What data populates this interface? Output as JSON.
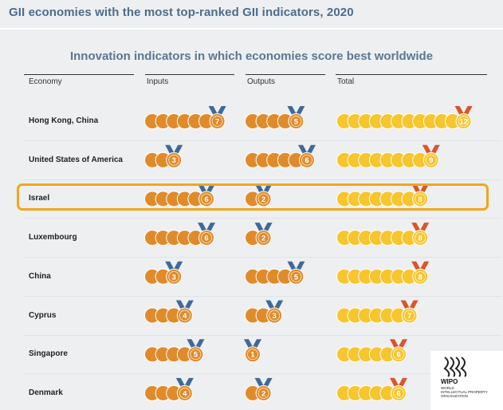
{
  "title": "GII economies with the most top-ranked GII indicators, 2020",
  "subtitle": "Innovation indicators in which economies score best worldwide",
  "colors": {
    "orange": "#e08b2b",
    "gold": "#f7c52e",
    "blue": "#40699a",
    "red": "#d9552a",
    "highlight": "#f0a71b",
    "title": "#4d6c8c"
  },
  "chart_data": {
    "type": "table",
    "title": "GII economies with the most top-ranked GII indicators, 2020",
    "subtitle": "Innovation indicators in which economies score best worldwide",
    "columns": [
      "Economy",
      "Inputs",
      "Outputs",
      "Total"
    ],
    "rows": [
      {
        "economy": "Hong Kong, China",
        "inputs": 7,
        "outputs": 5,
        "total": 12
      },
      {
        "economy": "United States of America",
        "inputs": 3,
        "outputs": 6,
        "total": 9
      },
      {
        "economy": "Israel",
        "inputs": 6,
        "outputs": 2,
        "total": 8,
        "highlighted": true
      },
      {
        "economy": "Luxembourg",
        "inputs": 6,
        "outputs": 2,
        "total": 8
      },
      {
        "economy": "China",
        "inputs": 3,
        "outputs": 5,
        "total": 8
      },
      {
        "economy": "Cyprus",
        "inputs": 4,
        "outputs": 3,
        "total": 7
      },
      {
        "economy": "Singapore",
        "inputs": 5,
        "outputs": 1,
        "total": 6
      },
      {
        "economy": "Denmark",
        "inputs": 4,
        "outputs": 2,
        "total": 6
      }
    ]
  },
  "logo": {
    "name": "WIPO",
    "line1": "WORLD",
    "line2": "INTELLECTUAL PROPERTY",
    "line3": "ORGANIZATION"
  }
}
